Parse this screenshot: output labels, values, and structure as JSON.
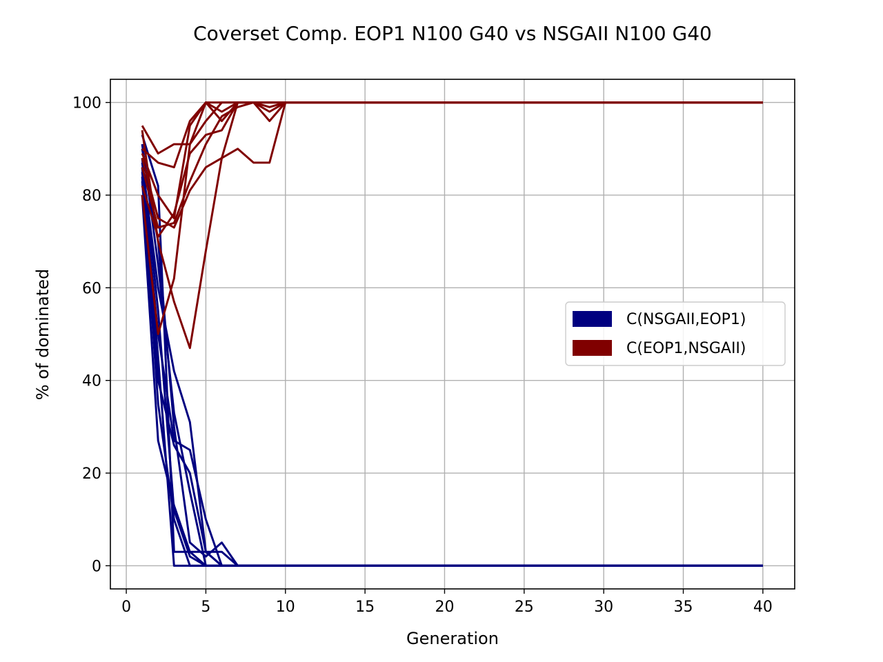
{
  "chart_data": {
    "type": "line",
    "title": "Coverset Comp. EOP1 N100 G40 vs NSGAII N100 G40",
    "xlabel": "Generation",
    "ylabel": "% of dominated",
    "xlim": [
      -1,
      42
    ],
    "ylim": [
      -5,
      105
    ],
    "xticks": [
      0,
      5,
      10,
      15,
      20,
      25,
      30,
      35,
      40
    ],
    "yticks": [
      0,
      20,
      40,
      60,
      80,
      100
    ],
    "grid": true,
    "legend_position": "center-right",
    "colors": {
      "NSGAII_EOP1": "#000080",
      "EOP1_NSGAII": "#800000"
    },
    "legend": [
      {
        "label": "C(NSGAII,EOP1)",
        "color": "#000080"
      },
      {
        "label": "C(EOP1,NSGAII)",
        "color": "#800000"
      }
    ],
    "series": [
      {
        "group": 0,
        "x": [
          1,
          2,
          3,
          4,
          5,
          6,
          7,
          40
        ],
        "y": [
          93,
          82,
          3,
          3,
          3,
          0,
          0,
          0
        ]
      },
      {
        "group": 0,
        "x": [
          1,
          2,
          3,
          4,
          5,
          6,
          7,
          40
        ],
        "y": [
          90,
          70,
          30,
          5,
          2,
          5,
          0,
          0
        ]
      },
      {
        "group": 0,
        "x": [
          1,
          2,
          3,
          4,
          5,
          6,
          7,
          40
        ],
        "y": [
          87,
          60,
          42,
          31,
          3,
          3,
          0,
          0
        ]
      },
      {
        "group": 0,
        "x": [
          1,
          2,
          3,
          4,
          5,
          6,
          7,
          40
        ],
        "y": [
          85,
          50,
          27,
          25,
          10,
          0,
          0,
          0
        ]
      },
      {
        "group": 0,
        "x": [
          1,
          2,
          3,
          4,
          5,
          6,
          7,
          40
        ],
        "y": [
          83,
          40,
          26,
          20,
          3,
          0,
          0,
          0
        ]
      },
      {
        "group": 0,
        "x": [
          1,
          2,
          3,
          4,
          5,
          6,
          7,
          40
        ],
        "y": [
          80,
          27,
          13,
          3,
          0,
          0,
          0,
          0
        ]
      },
      {
        "group": 0,
        "x": [
          1,
          2,
          3,
          4,
          5,
          6,
          7,
          40
        ],
        "y": [
          88,
          55,
          12,
          2,
          0,
          0,
          0,
          0
        ]
      },
      {
        "group": 0,
        "x": [
          1,
          2,
          3,
          4,
          5,
          6,
          7,
          40
        ],
        "y": [
          91,
          65,
          33,
          16,
          0,
          0,
          0,
          0
        ]
      },
      {
        "group": 0,
        "x": [
          1,
          2,
          3,
          4,
          5,
          6,
          7,
          40
        ],
        "y": [
          86,
          45,
          0,
          0,
          0,
          0,
          0,
          0
        ]
      },
      {
        "group": 0,
        "x": [
          1,
          2,
          3,
          4,
          5,
          6,
          7,
          40
        ],
        "y": [
          84,
          35,
          10,
          0,
          0,
          0,
          0,
          0
        ]
      },
      {
        "group": 1,
        "x": [
          1,
          2,
          3,
          4,
          5,
          6,
          7,
          8,
          9,
          10,
          11,
          40
        ],
        "y": [
          95,
          89,
          91,
          91,
          100,
          100,
          100,
          100,
          100,
          100,
          100,
          100
        ]
      },
      {
        "group": 1,
        "x": [
          1,
          2,
          3,
          4,
          5,
          6,
          7,
          8,
          9,
          10,
          11,
          40
        ],
        "y": [
          90,
          87,
          86,
          96,
          100,
          98,
          100,
          100,
          100,
          100,
          100,
          100
        ]
      },
      {
        "group": 1,
        "x": [
          1,
          2,
          3,
          4,
          5,
          6,
          7,
          8,
          9,
          10,
          11,
          40
        ],
        "y": [
          88,
          75,
          73,
          81,
          86,
          88,
          90,
          87,
          87,
          100,
          100,
          100
        ]
      },
      {
        "group": 1,
        "x": [
          1,
          2,
          3,
          4,
          5,
          6,
          7,
          8,
          9,
          10,
          11,
          40
        ],
        "y": [
          82,
          71,
          76,
          89,
          93,
          94,
          100,
          100,
          99,
          100,
          100,
          100
        ]
      },
      {
        "group": 1,
        "x": [
          1,
          2,
          3,
          4,
          5,
          6,
          7,
          8,
          9,
          10,
          11,
          40
        ],
        "y": [
          94,
          70,
          57,
          47,
          68,
          88,
          100,
          100,
          100,
          100,
          100,
          100
        ]
      },
      {
        "group": 1,
        "x": [
          1,
          2,
          3,
          4,
          5,
          6,
          7,
          8,
          9,
          10,
          11,
          40
        ],
        "y": [
          80,
          50,
          62,
          91,
          96,
          100,
          100,
          100,
          96,
          100,
          100,
          100
        ]
      },
      {
        "group": 1,
        "x": [
          1,
          2,
          3,
          4,
          5,
          6,
          7,
          8,
          9,
          10,
          11,
          40
        ],
        "y": [
          89,
          80,
          75,
          95,
          100,
          96,
          100,
          100,
          100,
          100,
          100,
          100
        ]
      },
      {
        "group": 1,
        "x": [
          1,
          2,
          3,
          4,
          5,
          6,
          7,
          8,
          9,
          10,
          11,
          40
        ],
        "y": [
          86,
          73,
          74,
          83,
          91,
          97,
          99,
          100,
          98,
          100,
          100,
          100
        ]
      }
    ]
  }
}
